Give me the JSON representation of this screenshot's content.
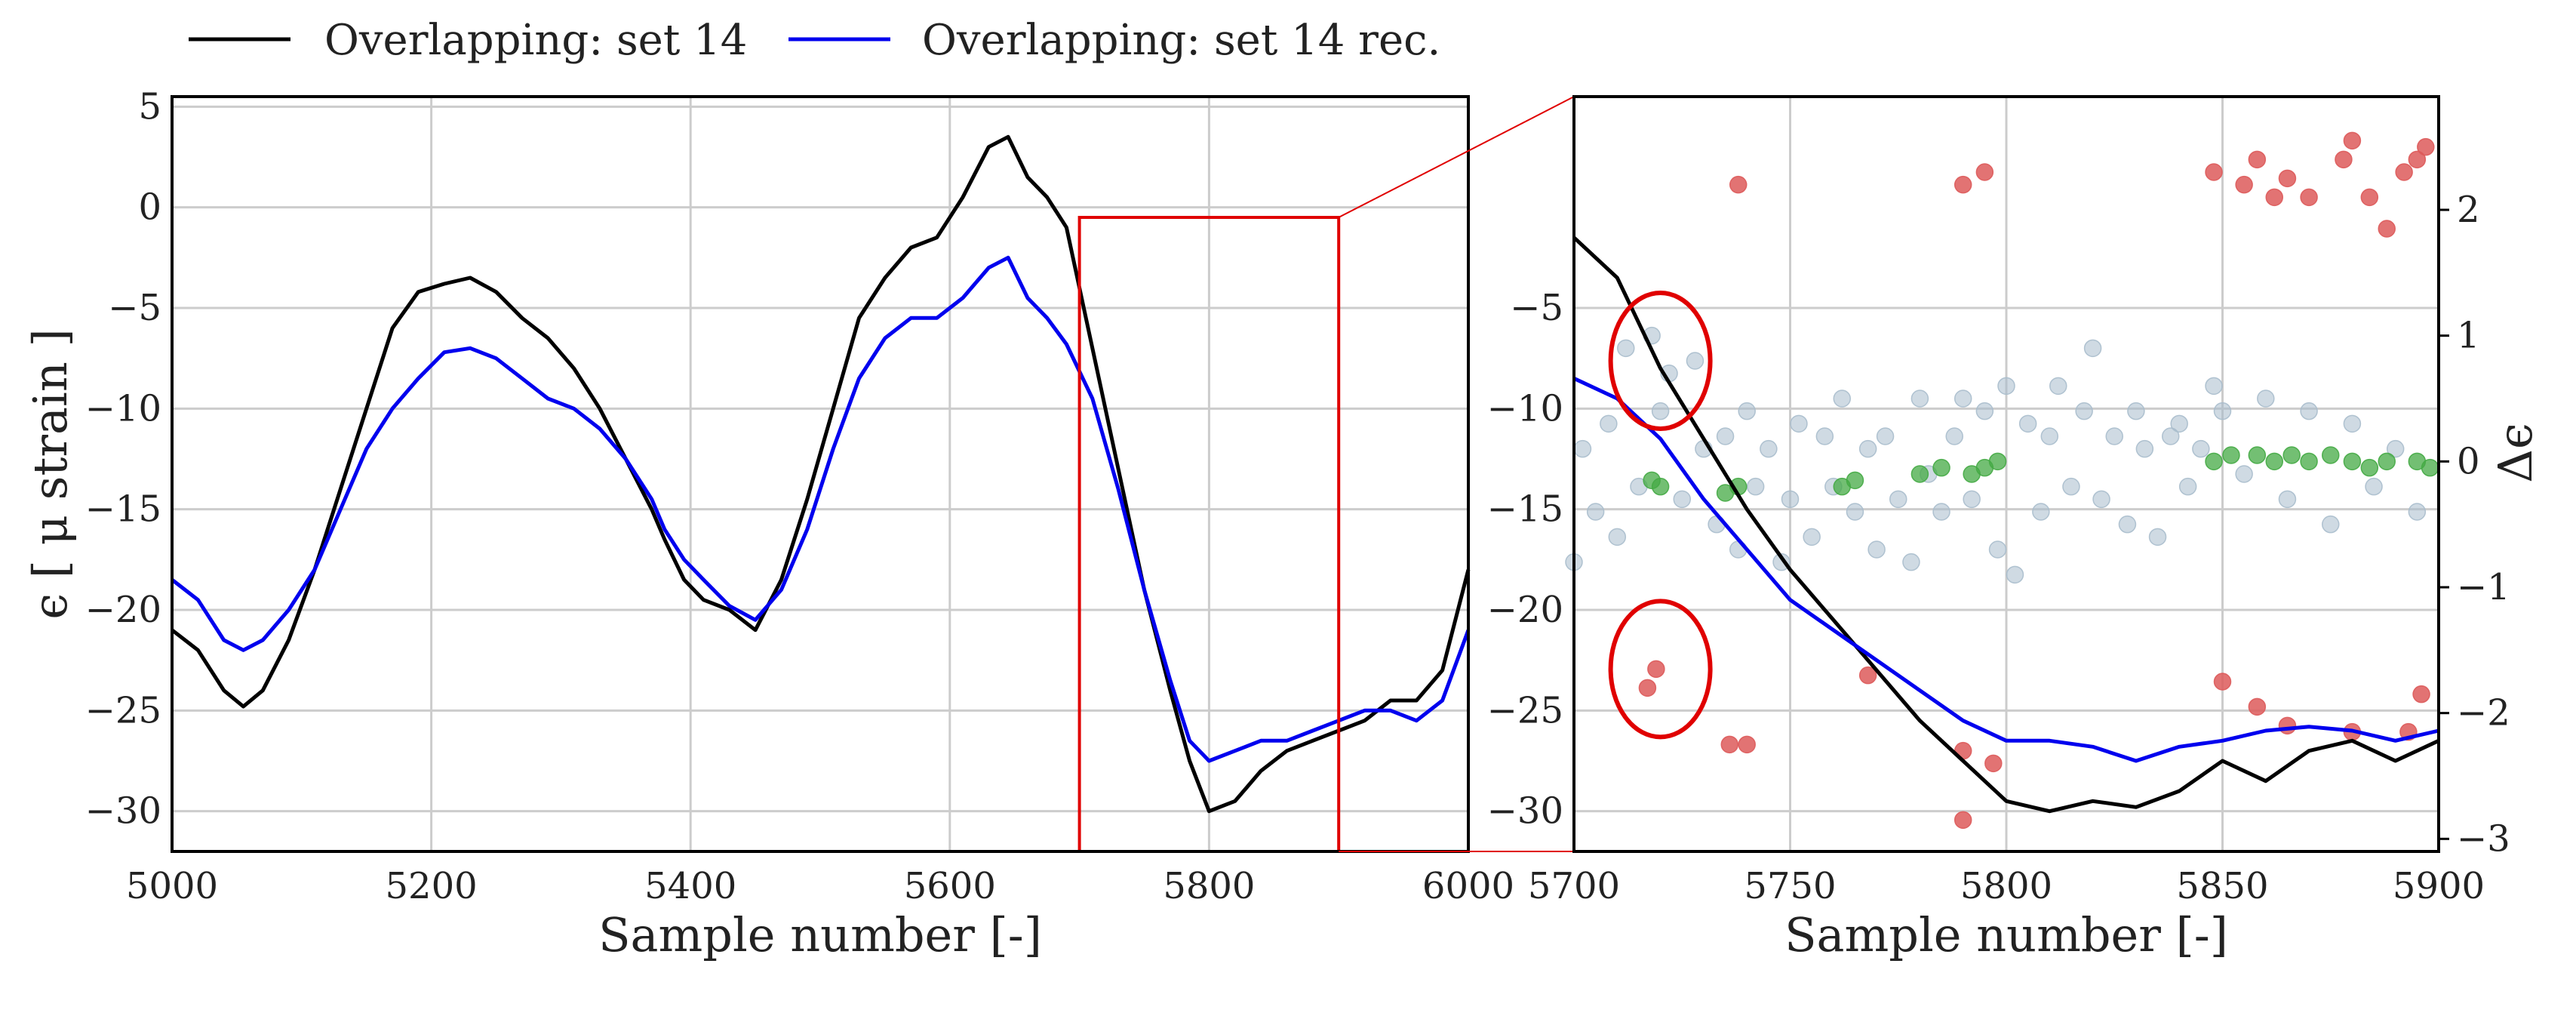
{
  "legend": [
    {
      "label": "Overlapping: set 14",
      "color": "#000000"
    },
    {
      "label": "Overlapping: set 14 rec.",
      "color": "#0000ee"
    }
  ],
  "colors": {
    "measured": "#000000",
    "reconstructed": "#0000ee",
    "highlight": "#e00000",
    "grid": "#cccccc",
    "residual_small": "#a8bccc",
    "residual_ok": "#44aa44",
    "residual_large": "#dd5a5a"
  },
  "chart_data": [
    {
      "type": "line",
      "panel": "overview",
      "xlabel": "Sample number [-]",
      "ylabel": "ϵ [ μ strain ]",
      "xlim": [
        5000,
        6000
      ],
      "ylim": [
        -32,
        5.5
      ],
      "xticks": [
        5000,
        5200,
        5400,
        5600,
        5800,
        6000
      ],
      "yticks": [
        5,
        0,
        -5,
        -10,
        -15,
        -20,
        -25,
        -30
      ],
      "xtick_labels": [
        "5000",
        "5200",
        "5400",
        "5600",
        "5800",
        "6000"
      ],
      "ytick_labels": [
        "5",
        "0",
        "−5",
        "−10",
        "−15",
        "−20",
        "−25",
        "−30"
      ],
      "grid": true,
      "zoom_box": {
        "x": [
          5700,
          5900
        ],
        "y": [
          -32,
          -0.5
        ]
      },
      "series": [
        {
          "name": "Overlapping: set 14",
          "color": "#000000",
          "x": [
            5000,
            5020,
            5040,
            5055,
            5070,
            5090,
            5110,
            5130,
            5150,
            5170,
            5190,
            5210,
            5230,
            5250,
            5270,
            5290,
            5310,
            5330,
            5350,
            5370,
            5380,
            5395,
            5410,
            5430,
            5450,
            5470,
            5490,
            5510,
            5530,
            5550,
            5570,
            5590,
            5610,
            5630,
            5645,
            5660,
            5675,
            5690,
            5710,
            5730,
            5750,
            5770,
            5785,
            5800,
            5820,
            5840,
            5860,
            5880,
            5900,
            5920,
            5940,
            5960,
            5980,
            6000
          ],
          "y": [
            -21,
            -22,
            -24,
            -24.8,
            -24,
            -21.5,
            -18,
            -14,
            -10,
            -6,
            -4.2,
            -3.8,
            -3.5,
            -4.2,
            -5.5,
            -6.5,
            -8,
            -10,
            -12.5,
            -15,
            -16.5,
            -18.5,
            -19.5,
            -20,
            -21,
            -18.5,
            -14.5,
            -10,
            -5.5,
            -3.5,
            -2,
            -1.5,
            0.5,
            3,
            3.5,
            1.5,
            0.5,
            -1,
            -7,
            -13,
            -19,
            -24,
            -27.5,
            -30,
            -29.5,
            -28,
            -27,
            -26.5,
            -26,
            -25.5,
            -24.5,
            -24.5,
            -23,
            -18
          ]
        },
        {
          "name": "Overlapping: set 14 rec.",
          "color": "#0000ee",
          "x": [
            5000,
            5020,
            5040,
            5055,
            5070,
            5090,
            5110,
            5130,
            5150,
            5170,
            5190,
            5210,
            5230,
            5250,
            5270,
            5290,
            5310,
            5330,
            5350,
            5370,
            5380,
            5395,
            5410,
            5430,
            5450,
            5470,
            5490,
            5510,
            5530,
            5550,
            5570,
            5590,
            5610,
            5630,
            5645,
            5660,
            5675,
            5690,
            5710,
            5730,
            5750,
            5770,
            5785,
            5800,
            5820,
            5840,
            5860,
            5880,
            5900,
            5920,
            5940,
            5960,
            5980,
            6000
          ],
          "y": [
            -18.5,
            -19.5,
            -21.5,
            -22,
            -21.5,
            -20,
            -18,
            -15,
            -12,
            -10,
            -8.5,
            -7.2,
            -7,
            -7.5,
            -8.5,
            -9.5,
            -10,
            -11,
            -12.5,
            -14.5,
            -16,
            -17.5,
            -18.5,
            -19.8,
            -20.5,
            -19,
            -16,
            -12,
            -8.5,
            -6.5,
            -5.5,
            -5.5,
            -4.5,
            -3,
            -2.5,
            -4.5,
            -5.5,
            -6.8,
            -9.5,
            -14,
            -19,
            -23.5,
            -26.5,
            -27.5,
            -27,
            -26.5,
            -26.5,
            -26,
            -25.5,
            -25,
            -25,
            -25.5,
            -24.5,
            -21
          ]
        }
      ]
    },
    {
      "type": "line",
      "panel": "zoom",
      "xlabel": "Sample number [-]",
      "ylabel": "",
      "ylabel_right": "Δϵ",
      "xlim": [
        5700,
        5900
      ],
      "ylim": [
        -32,
        5.5
      ],
      "ylim_right": [
        -3.1,
        2.9
      ],
      "xticks": [
        5700,
        5750,
        5800,
        5850,
        5900
      ],
      "yticks": [
        -5,
        -10,
        -15,
        -20,
        -25,
        -30
      ],
      "yticks_right": [
        2,
        1,
        0,
        -1,
        -2,
        -3
      ],
      "xtick_labels": [
        "5700",
        "5750",
        "5800",
        "5850",
        "5900"
      ],
      "ytick_labels": [
        "−5",
        "−10",
        "−15",
        "−20",
        "−25",
        "−30"
      ],
      "ytick_labels_right": [
        "2",
        "1",
        "0",
        "−1",
        "−2",
        "−3"
      ],
      "grid": true,
      "highlight_ellipses": [
        {
          "x": 5720,
          "y": 0.8
        },
        {
          "x": 5720,
          "y": -1.65
        }
      ],
      "series": [
        {
          "name": "Overlapping: set 14",
          "color": "#000000",
          "x": [
            5700,
            5710,
            5720,
            5730,
            5740,
            5750,
            5760,
            5770,
            5780,
            5790,
            5800,
            5810,
            5820,
            5830,
            5840,
            5850,
            5860,
            5870,
            5880,
            5890,
            5900
          ],
          "y": [
            -1.5,
            -3.5,
            -8,
            -11.5,
            -15,
            -18,
            -20.5,
            -23,
            -25.5,
            -27.5,
            -29.5,
            -30,
            -29.5,
            -29.8,
            -29,
            -27.5,
            -28.5,
            -27,
            -26.5,
            -27.5,
            -26.5
          ]
        },
        {
          "name": "Overlapping: set 14 rec.",
          "color": "#0000ee",
          "x": [
            5700,
            5710,
            5720,
            5730,
            5740,
            5750,
            5760,
            5770,
            5780,
            5790,
            5800,
            5810,
            5820,
            5830,
            5840,
            5850,
            5860,
            5870,
            5880,
            5890,
            5900
          ],
          "y": [
            -8.5,
            -9.5,
            -11.5,
            -14.5,
            -17,
            -19.5,
            -21,
            -22.5,
            -24,
            -25.5,
            -26.5,
            -26.5,
            -26.8,
            -27.5,
            -26.8,
            -26.5,
            -26,
            -25.8,
            -26,
            -26.5,
            -26
          ]
        }
      ],
      "residual_points": {
        "small": {
          "x": [
            5700,
            5702,
            5705,
            5708,
            5710,
            5712,
            5715,
            5718,
            5720,
            5722,
            5725,
            5728,
            5730,
            5733,
            5735,
            5738,
            5740,
            5742,
            5745,
            5748,
            5750,
            5752,
            5755,
            5758,
            5760,
            5762,
            5765,
            5768,
            5770,
            5772,
            5775,
            5778,
            5780,
            5782,
            5785,
            5788,
            5790,
            5792,
            5795,
            5798,
            5800,
            5802,
            5805,
            5808,
            5810,
            5812,
            5815,
            5818,
            5820,
            5822,
            5825,
            5828,
            5830,
            5832,
            5835,
            5838,
            5840,
            5842,
            5845,
            5848,
            5850,
            5855,
            5860,
            5865,
            5870,
            5875,
            5880,
            5885,
            5890,
            5895
          ],
          "y": [
            -0.8,
            0.1,
            -0.4,
            0.3,
            -0.6,
            0.9,
            -0.2,
            1,
            0.4,
            0.7,
            -0.3,
            0.8,
            0.1,
            -0.5,
            0.2,
            -0.7,
            0.4,
            -0.2,
            0.1,
            -0.8,
            -0.3,
            0.3,
            -0.6,
            0.2,
            -0.2,
            0.5,
            -0.4,
            0.1,
            -0.7,
            0.2,
            -0.3,
            -0.8,
            0.5,
            -0.1,
            -0.4,
            0.2,
            0.5,
            -0.3,
            0.4,
            -0.7,
            0.6,
            -0.9,
            0.3,
            -0.4,
            0.2,
            0.6,
            -0.2,
            0.4,
            0.9,
            -0.3,
            0.2,
            -0.5,
            0.4,
            0.1,
            -0.6,
            0.2,
            0.3,
            -0.2,
            0.1,
            0.6,
            0.4,
            -0.1,
            0.5,
            -0.3,
            0.4,
            -0.5,
            0.3,
            -0.2,
            0.1,
            -0.4
          ]
        },
        "ok": {
          "x": [
            5718,
            5720,
            5735,
            5738,
            5762,
            5765,
            5780,
            5785,
            5792,
            5795,
            5798,
            5848,
            5852,
            5858,
            5862,
            5866,
            5870,
            5875,
            5880,
            5884,
            5888,
            5895,
            5898
          ],
          "y": [
            -0.15,
            -0.2,
            -0.25,
            -0.2,
            -0.2,
            -0.15,
            -0.1,
            -0.05,
            -0.1,
            -0.05,
            0.0,
            0.0,
            0.05,
            0.05,
            0.0,
            0.05,
            0.0,
            0.05,
            0.0,
            -0.05,
            0.0,
            0.0,
            -0.05
          ]
        },
        "large": {
          "x": [
            5717,
            5719,
            5738,
            5736,
            5740,
            5768,
            5790,
            5795,
            5797,
            5790,
            5790,
            5848,
            5850,
            5855,
            5858,
            5862,
            5865,
            5870,
            5878,
            5880,
            5884,
            5888,
            5892,
            5895,
            5897,
            5896,
            5858,
            5865,
            5880,
            5893
          ],
          "y": [
            -1.8,
            -1.65,
            2.2,
            -2.25,
            -2.25,
            -1.7,
            2.2,
            2.3,
            -2.4,
            -2.85,
            -2.3,
            2.3,
            -1.75,
            2.2,
            2.4,
            2.1,
            2.25,
            2.1,
            2.4,
            2.55,
            2.1,
            1.85,
            2.3,
            2.4,
            2.5,
            -1.85,
            -1.95,
            -2.1,
            -2.15,
            -2.15
          ]
        }
      }
    }
  ]
}
